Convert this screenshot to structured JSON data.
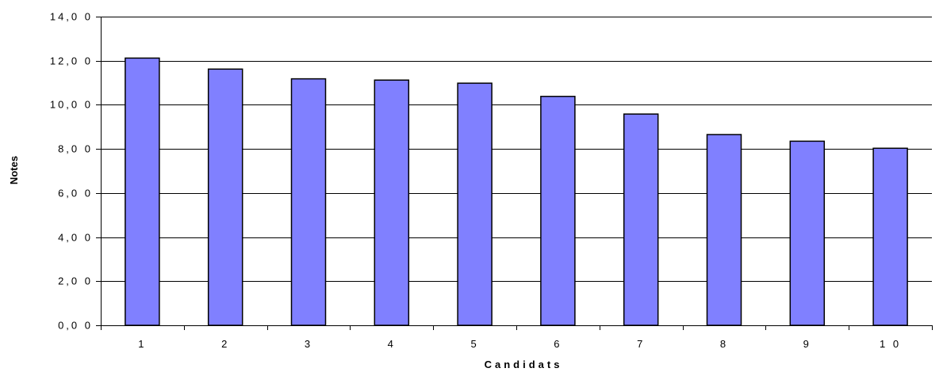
{
  "chart_data": {
    "type": "bar",
    "categories": [
      "1",
      "2",
      "3",
      "4",
      "5",
      "6",
      "7",
      "8",
      "9",
      "1 0"
    ],
    "values": [
      12.12,
      11.62,
      11.18,
      11.12,
      10.98,
      10.38,
      9.58,
      8.65,
      8.35,
      8.03
    ],
    "y_ticks": [
      "0,0 0",
      "2,0 0",
      "4,0 0",
      "6,0 0",
      "8,0 0",
      "10,0 0",
      "12,0 0",
      "14,0 0"
    ],
    "ylim": [
      0,
      14
    ],
    "xlabel": "Candidats",
    "ylabel": "Notes",
    "grid": true,
    "legend": "none",
    "bar_color": "#8080ff",
    "bar_edge_color": "#000000"
  }
}
